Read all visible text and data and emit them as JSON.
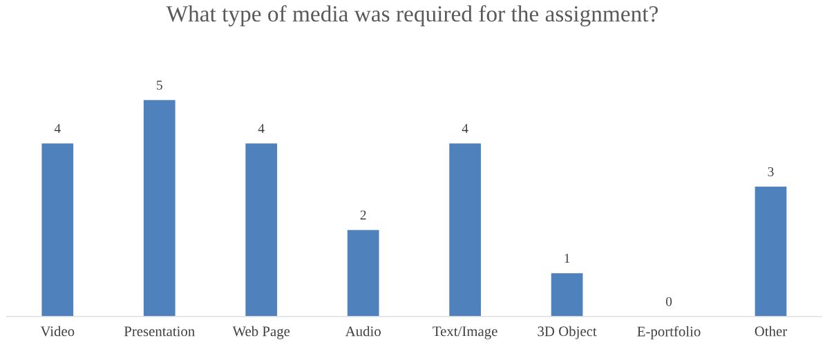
{
  "chart_data": {
    "type": "bar",
    "title": "What type of media was required for the assignment?",
    "categories": [
      "Video",
      "Presentation",
      "Web Page",
      "Audio",
      "Text/Image",
      "3D Object",
      "E-portfolio",
      "Other"
    ],
    "values": [
      4,
      5,
      4,
      2,
      4,
      1,
      0,
      3
    ],
    "color": "#4f81bd",
    "data_labels": true
  }
}
